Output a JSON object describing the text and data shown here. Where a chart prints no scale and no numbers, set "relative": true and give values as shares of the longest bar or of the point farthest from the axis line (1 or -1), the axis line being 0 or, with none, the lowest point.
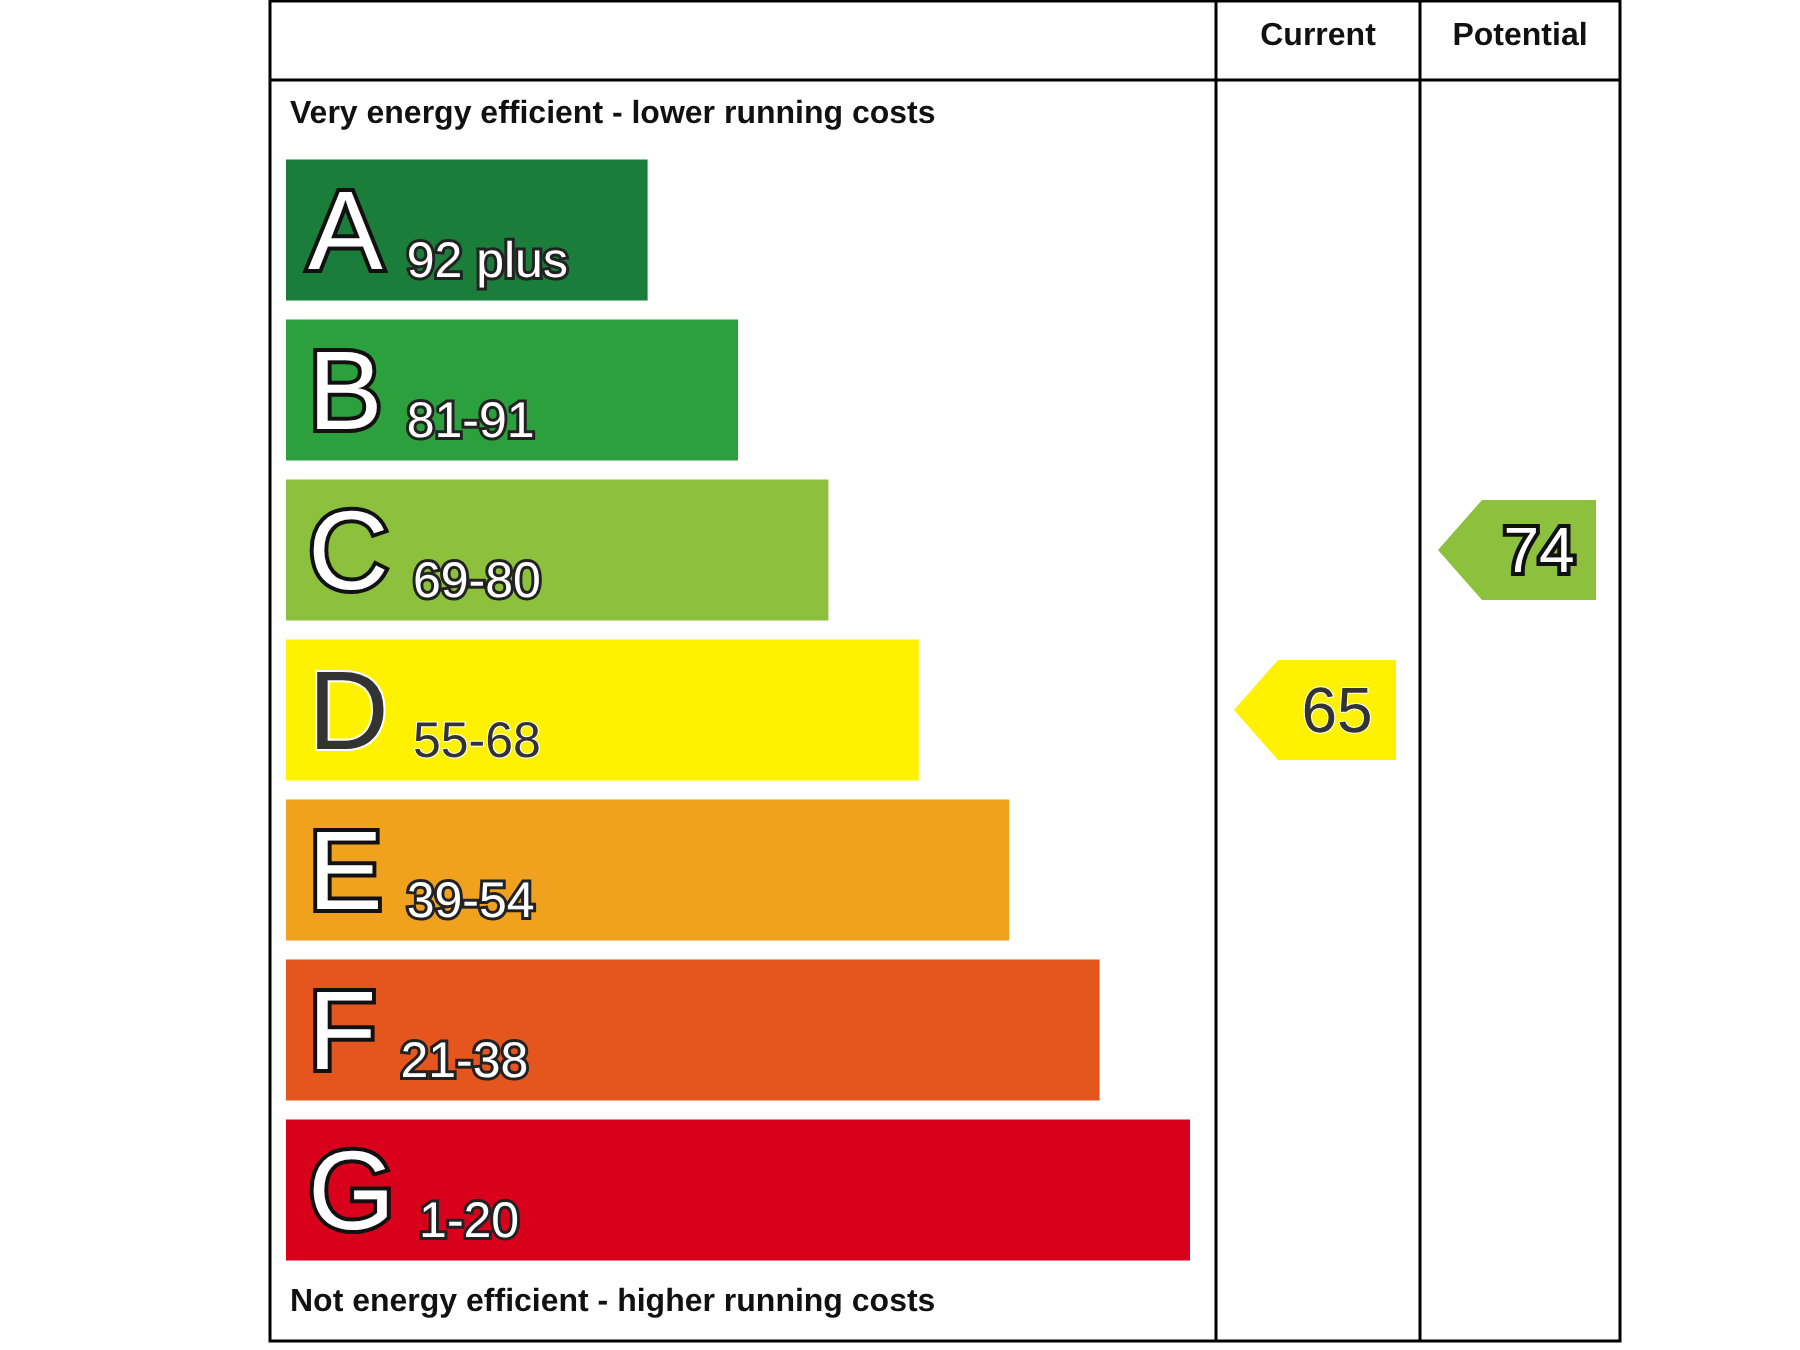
{
  "chart_data": {
    "type": "bar",
    "orientation": "horizontal",
    "relative": true,
    "categories": [
      "A 92 plus",
      "B 81-91",
      "C 69-80",
      "D 55-68",
      "E 39-54",
      "F 21-38",
      "G 1-20"
    ],
    "values": [
      0.4,
      0.5,
      0.6,
      0.7,
      0.8,
      0.9,
      1
    ],
    "colors": [
      "#1b7d3a",
      "#2ca03c",
      "#8dc03c",
      "#fff200",
      "#f0a11e",
      "#e4561d",
      "#d9001b"
    ],
    "annotations": [
      "Very energy efficient - lower running costs",
      "Not energy efficient - higher running costs",
      "Current",
      "Potential",
      "65",
      "74"
    ]
  }
}
